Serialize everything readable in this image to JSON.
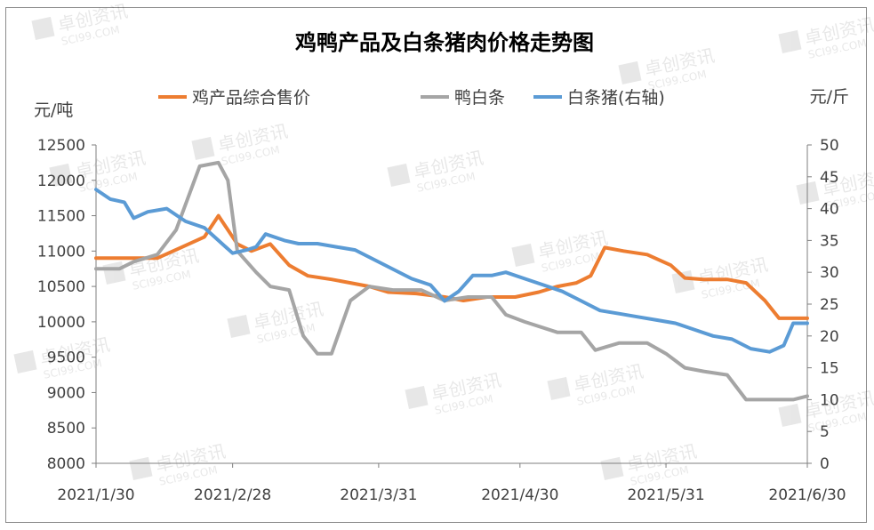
{
  "chart_data": {
    "type": "line",
    "title": "鸡鸭产品及白条猪肉价格走势图",
    "ylabel_left": "元/吨",
    "ylabel_right": "元/斤",
    "ylim_left": [
      8000,
      12500
    ],
    "ylim_right": [
      0,
      50
    ],
    "yticks_left": [
      "8000",
      "8500",
      "9000",
      "9500",
      "10000",
      "10500",
      "11000",
      "11500",
      "12000",
      "12500"
    ],
    "yticks_right": [
      "0",
      "5",
      "10",
      "15",
      "20",
      "25",
      "30",
      "35",
      "40",
      "45",
      "50"
    ],
    "xticks": [
      "2021/1/30",
      "2021/2/28",
      "2021/3/31",
      "2021/4/30",
      "2021/5/31",
      "2021/6/30"
    ],
    "x_range": [
      "2021/1/30",
      "2021/6/30"
    ],
    "legend_position": "top",
    "series": [
      {
        "name": "鸡产品综合售价",
        "axis": "left",
        "color": "#ED7D31",
        "points": [
          [
            "2021/1/30",
            10900
          ],
          [
            "2021/2/5",
            10900
          ],
          [
            "2021/2/12",
            10900
          ],
          [
            "2021/2/17",
            11050
          ],
          [
            "2021/2/22",
            11200
          ],
          [
            "2021/2/25",
            11500
          ],
          [
            "2021/3/1",
            11100
          ],
          [
            "2021/3/4",
            11000
          ],
          [
            "2021/3/8",
            11100
          ],
          [
            "2021/3/12",
            10800
          ],
          [
            "2021/3/16",
            10650
          ],
          [
            "2021/3/21",
            10600
          ],
          [
            "2021/3/25",
            10550
          ],
          [
            "2021/3/29",
            10500
          ],
          [
            "2021/4/2",
            10420
          ],
          [
            "2021/4/8",
            10400
          ],
          [
            "2021/4/14",
            10350
          ],
          [
            "2021/4/18",
            10300
          ],
          [
            "2021/4/23",
            10350
          ],
          [
            "2021/4/29",
            10350
          ],
          [
            "2021/5/4",
            10420
          ],
          [
            "2021/5/8",
            10500
          ],
          [
            "2021/5/12",
            10550
          ],
          [
            "2021/5/15",
            10650
          ],
          [
            "2021/5/18",
            11050
          ],
          [
            "2021/5/22",
            11000
          ],
          [
            "2021/5/27",
            10950
          ],
          [
            "2021/6/1",
            10800
          ],
          [
            "2021/6/4",
            10620
          ],
          [
            "2021/6/8",
            10600
          ],
          [
            "2021/6/13",
            10600
          ],
          [
            "2021/6/17",
            10550
          ],
          [
            "2021/6/21",
            10300
          ],
          [
            "2021/6/24",
            10050
          ],
          [
            "2021/6/28",
            10050
          ],
          [
            "2021/6/30",
            10050
          ]
        ]
      },
      {
        "name": "鸭白条",
        "axis": "left",
        "color": "#A5A5A5",
        "points": [
          [
            "2021/1/30",
            10750
          ],
          [
            "2021/2/4",
            10750
          ],
          [
            "2021/2/7",
            10850
          ],
          [
            "2021/2/12",
            10950
          ],
          [
            "2021/2/16",
            11300
          ],
          [
            "2021/2/21",
            12200
          ],
          [
            "2021/2/25",
            12250
          ],
          [
            "2021/2/27",
            12000
          ],
          [
            "2021/3/1",
            11000
          ],
          [
            "2021/3/5",
            10700
          ],
          [
            "2021/3/8",
            10500
          ],
          [
            "2021/3/12",
            10450
          ],
          [
            "2021/3/15",
            9800
          ],
          [
            "2021/3/18",
            9550
          ],
          [
            "2021/3/21",
            9550
          ],
          [
            "2021/3/25",
            10300
          ],
          [
            "2021/3/29",
            10500
          ],
          [
            "2021/4/3",
            10450
          ],
          [
            "2021/4/9",
            10450
          ],
          [
            "2021/4/14",
            10300
          ],
          [
            "2021/4/19",
            10350
          ],
          [
            "2021/4/24",
            10350
          ],
          [
            "2021/4/27",
            10100
          ],
          [
            "2021/5/1",
            10000
          ],
          [
            "2021/5/8",
            9850
          ],
          [
            "2021/5/13",
            9850
          ],
          [
            "2021/5/16",
            9600
          ],
          [
            "2021/5/21",
            9700
          ],
          [
            "2021/5/27",
            9700
          ],
          [
            "2021/5/31",
            9550
          ],
          [
            "2021/6/4",
            9350
          ],
          [
            "2021/6/8",
            9300
          ],
          [
            "2021/6/13",
            9250
          ],
          [
            "2021/6/17",
            8900
          ],
          [
            "2021/6/22",
            8900
          ],
          [
            "2021/6/27",
            8900
          ],
          [
            "2021/6/30",
            8950
          ]
        ]
      },
      {
        "name": "白条猪(右轴)",
        "axis": "right",
        "color": "#5B9BD5",
        "points": [
          [
            "2021/1/30",
            43
          ],
          [
            "2021/2/2",
            41.5
          ],
          [
            "2021/2/5",
            41
          ],
          [
            "2021/2/7",
            38.5
          ],
          [
            "2021/2/10",
            39.5
          ],
          [
            "2021/2/14",
            40
          ],
          [
            "2021/2/18",
            38
          ],
          [
            "2021/2/22",
            37
          ],
          [
            "2021/2/25",
            35
          ],
          [
            "2021/2/28",
            33
          ],
          [
            "2021/3/3",
            33.5
          ],
          [
            "2021/3/5",
            34
          ],
          [
            "2021/3/7",
            36
          ],
          [
            "2021/3/11",
            35
          ],
          [
            "2021/3/14",
            34.5
          ],
          [
            "2021/3/18",
            34.5
          ],
          [
            "2021/3/22",
            34
          ],
          [
            "2021/3/26",
            33.5
          ],
          [
            "2021/3/30",
            32
          ],
          [
            "2021/4/3",
            30.5
          ],
          [
            "2021/4/7",
            29
          ],
          [
            "2021/4/11",
            28
          ],
          [
            "2021/4/14",
            25.5
          ],
          [
            "2021/4/17",
            27
          ],
          [
            "2021/4/20",
            29.5
          ],
          [
            "2021/4/24",
            29.5
          ],
          [
            "2021/4/27",
            30
          ],
          [
            "2021/5/1",
            29
          ],
          [
            "2021/5/5",
            28
          ],
          [
            "2021/5/9",
            27
          ],
          [
            "2021/5/13",
            25.5
          ],
          [
            "2021/5/17",
            24
          ],
          [
            "2021/5/21",
            23.5
          ],
          [
            "2021/5/25",
            23
          ],
          [
            "2021/5/29",
            22.5
          ],
          [
            "2021/6/2",
            22
          ],
          [
            "2021/6/6",
            21
          ],
          [
            "2021/6/10",
            20
          ],
          [
            "2021/6/14",
            19.5
          ],
          [
            "2021/6/18",
            18
          ],
          [
            "2021/6/22",
            17.5
          ],
          [
            "2021/6/25",
            18.5
          ],
          [
            "2021/6/27",
            22
          ],
          [
            "2021/6/29",
            22
          ],
          [
            "2021/6/30",
            22
          ]
        ]
      }
    ],
    "watermark_text": [
      "卓创资讯",
      "SCI99.COM"
    ]
  }
}
